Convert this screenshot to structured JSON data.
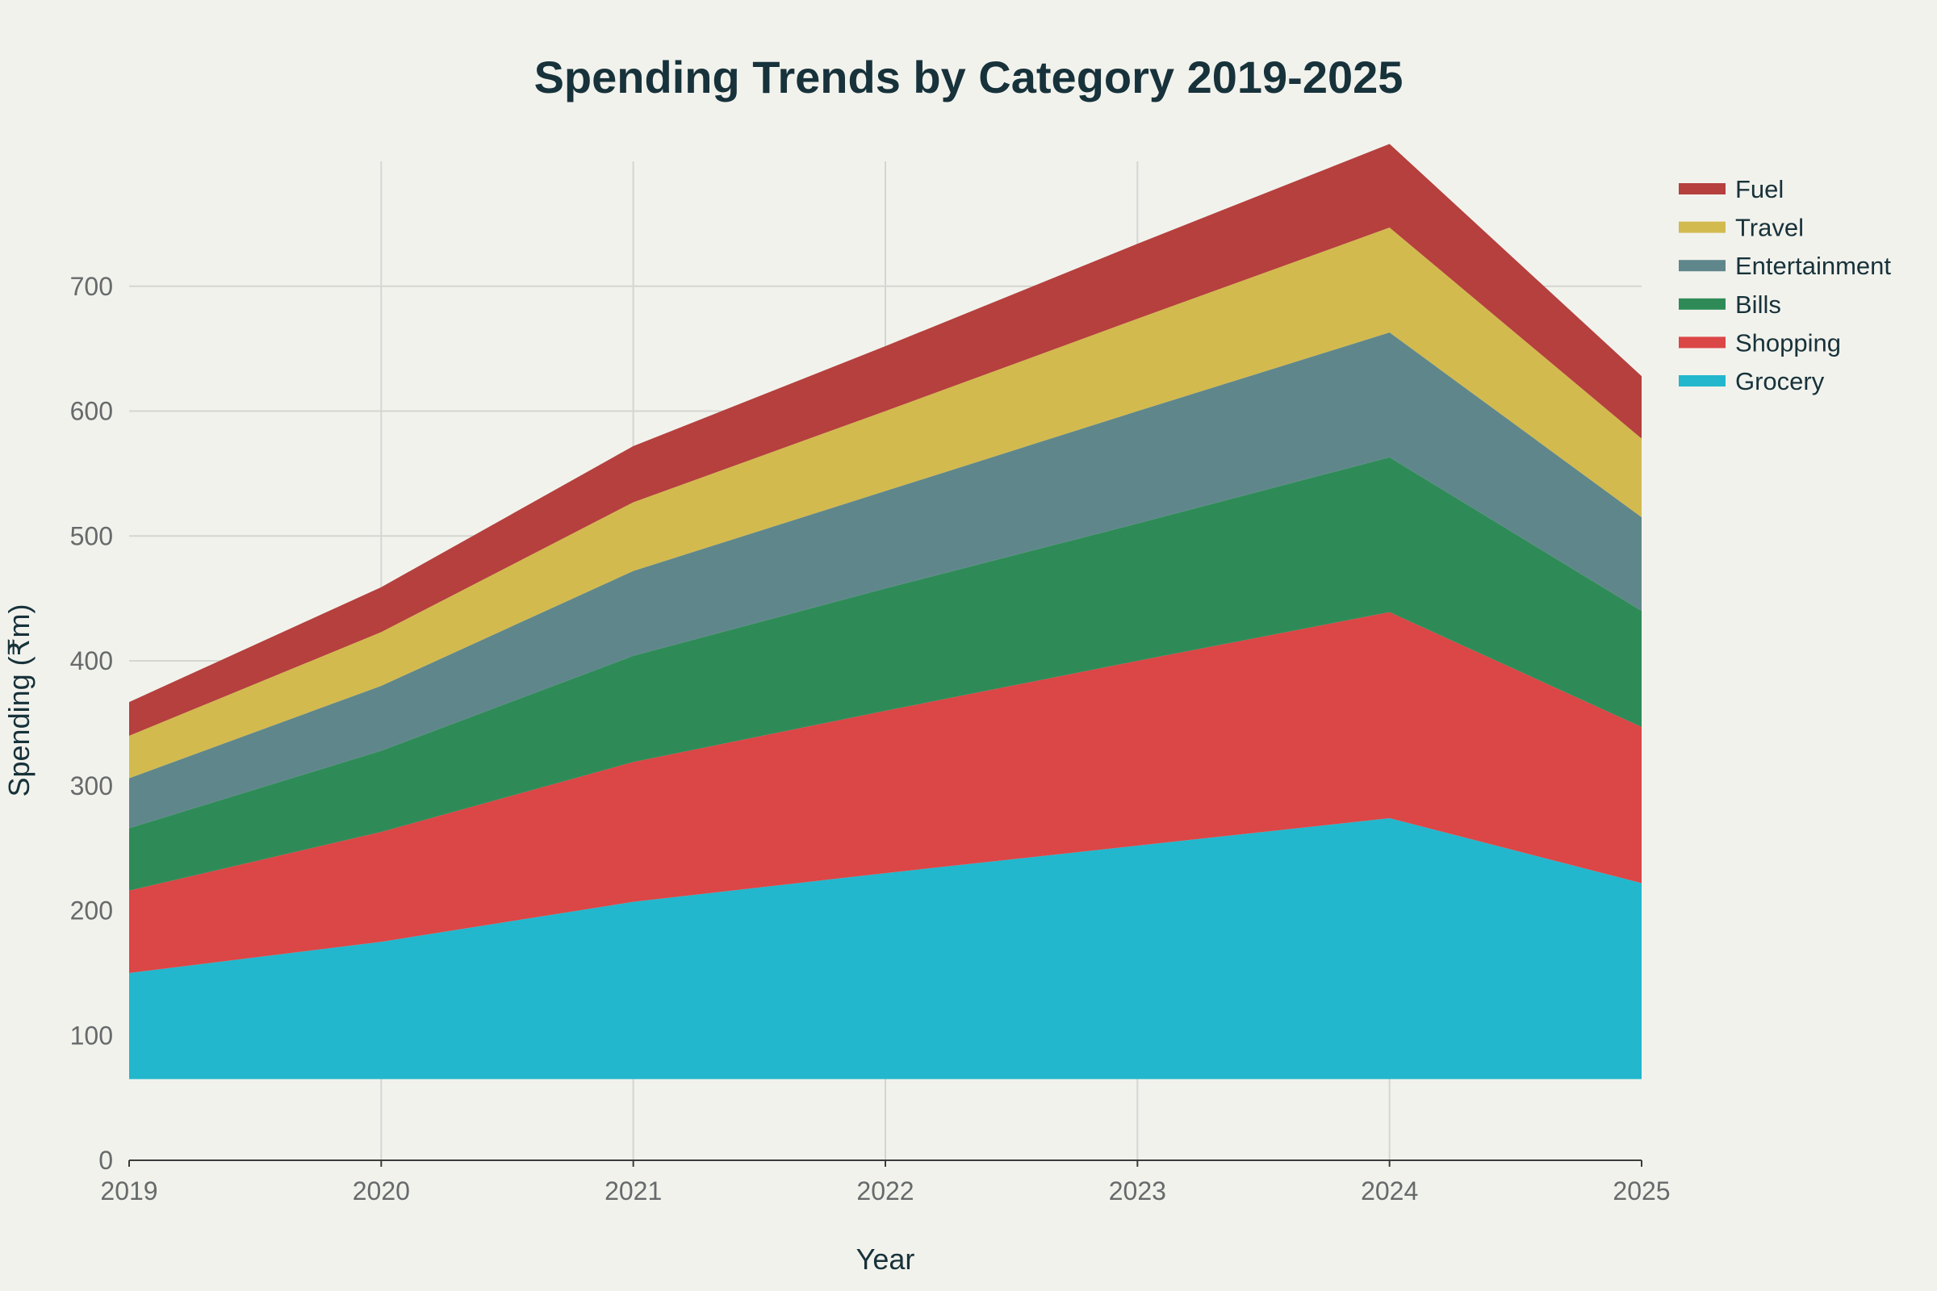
{
  "chart_data": {
    "type": "area",
    "stacked": true,
    "title": "Spending Trends by Category 2019-2025",
    "xlabel": "Year",
    "ylabel": "Spending (₹m)",
    "x": [
      2019,
      2020,
      2021,
      2022,
      2023,
      2024,
      2025
    ],
    "x_tick_labels": [
      "2019",
      "2020",
      "2021",
      "2022",
      "2023",
      "2024",
      "2025"
    ],
    "y_ticks": [
      0,
      100,
      200,
      300,
      400,
      500,
      600,
      700
    ],
    "ylim": [
      0,
      800
    ],
    "area_baseline": 65,
    "grid": true,
    "legend_position": "top-right",
    "series": [
      {
        "name": "Grocery",
        "color": "#22b7cd",
        "values": [
          150,
          175,
          207,
          230,
          252,
          274,
          222
        ]
      },
      {
        "name": "Shopping",
        "color": "#db4646",
        "values": [
          66,
          88,
          112,
          130,
          148,
          165,
          125
        ]
      },
      {
        "name": "Bills",
        "color": "#2e8b57",
        "values": [
          50,
          65,
          85,
          98,
          110,
          124,
          93
        ]
      },
      {
        "name": "Entertainment",
        "color": "#5f878b",
        "values": [
          40,
          52,
          68,
          78,
          90,
          100,
          75
        ]
      },
      {
        "name": "Travel",
        "color": "#d3ba4f",
        "values": [
          34,
          43,
          55,
          64,
          74,
          84,
          63
        ]
      },
      {
        "name": "Fuel",
        "color": "#b5403d",
        "values": [
          27,
          36,
          45,
          52,
          60,
          67,
          50
        ]
      }
    ]
  }
}
